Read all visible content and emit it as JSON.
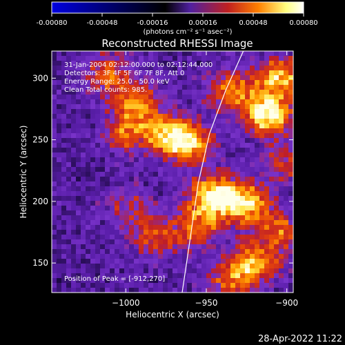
{
  "colorbar": {
    "tick_labels": [
      "-0.00080",
      "-0.00048",
      "-0.00016",
      "0.00016",
      "0.00048",
      "0.00080"
    ],
    "tick_values": [
      -0.0008,
      -0.00048,
      -0.00016,
      0.00016,
      0.00048,
      0.0008
    ],
    "unit_label": "(photons cm⁻² s⁻¹ asec⁻²)",
    "range": [
      -0.0008,
      0.0008
    ],
    "colors": [
      "#0000e0",
      "#000000",
      "#5020a0",
      "#c02020",
      "#ff8000",
      "#ffff80",
      "#ffffff"
    ]
  },
  "chart_data": {
    "type": "heatmap",
    "title": "Reconstructed RHESSI Image",
    "xlabel": "Heliocentric X (arcsec)",
    "ylabel": "Heliocentric Y (arcsec)",
    "xlim": [
      -1046,
      -896
    ],
    "ylim": [
      126,
      322
    ],
    "x_ticks": [
      -1000,
      -950,
      -900
    ],
    "x_tick_labels": [
      "−1000",
      "−950",
      "−900"
    ],
    "y_ticks": [
      150,
      200,
      250,
      300
    ],
    "y_tick_labels": [
      "150",
      "200",
      "250",
      "300"
    ],
    "annotations": [
      "31-Jan-2004 02:12:00.000 to 02:12:44.000",
      "Detectors: 3F 4F 5F 6F 7F 8F, Att 0",
      "Energy Range: 25.0 - 50.0 keV",
      "Clean    Total counts: 985."
    ],
    "peak_label": "Position of Peak = [-912,270]",
    "peak_position": [
      -912,
      270
    ],
    "limb_curve": [
      [
        -965,
        126
      ],
      [
        -960,
        170
      ],
      [
        -955,
        215
      ],
      [
        -948,
        255
      ],
      [
        -938,
        290
      ],
      [
        -927,
        322
      ]
    ],
    "hot_spots": [
      {
        "x": -1010,
        "y": 303,
        "amp": 0.55
      },
      {
        "x": -993,
        "y": 278,
        "amp": 0.65
      },
      {
        "x": -1000,
        "y": 255,
        "amp": 0.5
      },
      {
        "x": -972,
        "y": 255,
        "amp": 0.75
      },
      {
        "x": -960,
        "y": 245,
        "amp": 0.65
      },
      {
        "x": -935,
        "y": 290,
        "amp": 0.6
      },
      {
        "x": -912,
        "y": 270,
        "amp": 1.0
      },
      {
        "x": -905,
        "y": 300,
        "amp": 0.8
      },
      {
        "x": -945,
        "y": 205,
        "amp": 0.95
      },
      {
        "x": -925,
        "y": 198,
        "amp": 0.8
      },
      {
        "x": -955,
        "y": 180,
        "amp": 0.6
      },
      {
        "x": -998,
        "y": 195,
        "amp": 0.35
      },
      {
        "x": -982,
        "y": 170,
        "amp": 0.45
      },
      {
        "x": -920,
        "y": 150,
        "amp": 0.7
      },
      {
        "x": -905,
        "y": 175,
        "amp": 0.55
      },
      {
        "x": -935,
        "y": 135,
        "amp": 0.5
      },
      {
        "x": -900,
        "y": 232,
        "amp": 0.45
      }
    ]
  },
  "footer": {
    "timestamp": "28-Apr-2022 11:22"
  }
}
